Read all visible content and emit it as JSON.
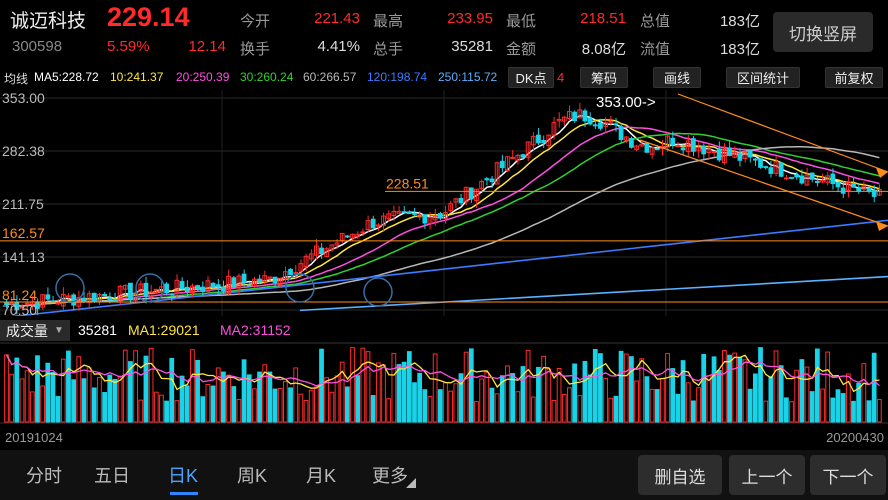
{
  "stock": {
    "name": "诚迈科技",
    "code": "300598",
    "price": "229.14",
    "change_pct": "5.59%",
    "change": "12.14"
  },
  "quote": {
    "open_label": "今开",
    "open": "221.43",
    "high_label": "最高",
    "high": "233.95",
    "low_label": "最低",
    "low": "218.51",
    "mktcap_label": "总值",
    "mktcap": "183亿",
    "turnover_label": "换手",
    "turnover": "4.41%",
    "volume_label": "总手",
    "volume": "35281",
    "amount_label": "金额",
    "amount": "8.08亿",
    "float_label": "流值",
    "float": "183亿"
  },
  "switch_label": "切换竖屏",
  "ma_bar": {
    "label": "均线",
    "ma5": "MA5:228.72",
    "ma10": "10:241.37",
    "ma20": "20:250.39",
    "ma30": "30:260.24",
    "ma60": "60:266.57",
    "ma120": "120:198.74",
    "ma250": "250:115.72"
  },
  "tools": {
    "dk": "DK点",
    "dk_count": "4",
    "chips": "筹码",
    "draw": "画线",
    "range": "区间统计",
    "adjust": "前复权"
  },
  "price_axis": [
    "353.00",
    "282.38",
    "211.75",
    "141.13",
    "70.50"
  ],
  "markers": {
    "peak": "353.00->",
    "level1": "228.51",
    "level2": "162.57",
    "level3": "81.24"
  },
  "volume": {
    "tab": "成交量",
    "value": "35281",
    "ma1": "MA1:29021",
    "ma2": "MA2:31152"
  },
  "dates": {
    "start": "20191024",
    "end": "20200430"
  },
  "nav": {
    "tabs": [
      "分时",
      "五日",
      "日K",
      "周K",
      "月K",
      "更多"
    ],
    "delete_watch": "删自选",
    "prev": "上一个",
    "next": "下一个"
  },
  "colors": {
    "up": "#ff2a2a",
    "down": "#19d3e8",
    "ma5": "#ffffff",
    "ma10": "#ffe63a",
    "ma20": "#ff4fe0",
    "ma30": "#2fd12f",
    "ma60": "#b8b8b8",
    "ma120": "#3a7bff",
    "ma250": "#5ab1ff",
    "accent": "#ff8c1a"
  }
}
